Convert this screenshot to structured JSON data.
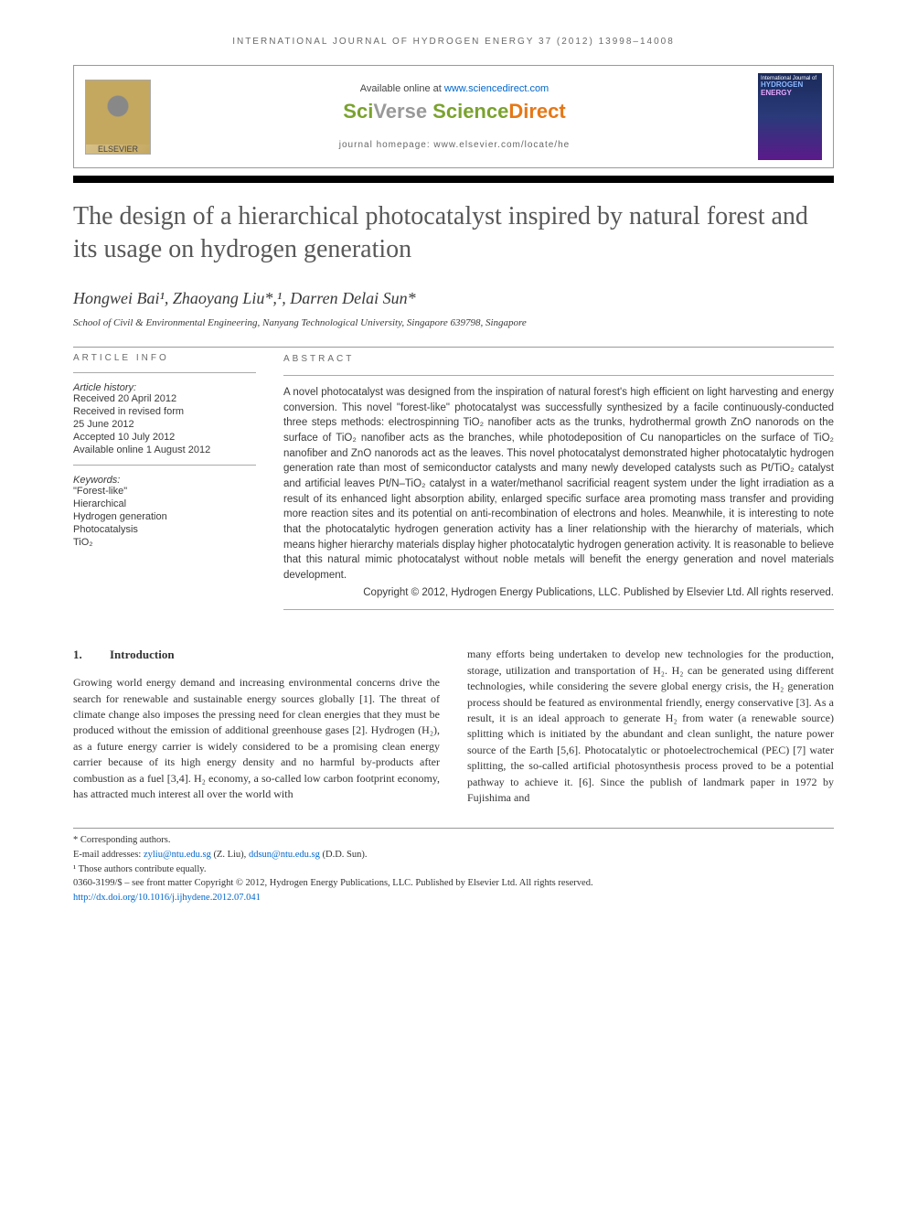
{
  "running_head": "INTERNATIONAL JOURNAL OF HYDROGEN ENERGY 37 (2012) 13998–14008",
  "banner": {
    "elsevier_label": "ELSEVIER",
    "available_text": "Available online at ",
    "available_url": "www.sciencedirect.com",
    "sciverse_sci": "Sci",
    "sciverse_verse": "Verse ",
    "sciverse_science": "Science",
    "sciverse_direct": "Direct",
    "homepage_label": "journal homepage: www.elsevier.com/locate/he",
    "cover_top": "International Journal of",
    "cover_hydrogen": "HYDROGEN",
    "cover_energy": "ENERGY"
  },
  "title": "The design of a hierarchical photocatalyst inspired by natural forest and its usage on hydrogen generation",
  "authors": "Hongwei Bai¹, Zhaoyang Liu*,¹, Darren Delai Sun*",
  "affiliation": "School of Civil & Environmental Engineering, Nanyang Technological University, Singapore 639798, Singapore",
  "info": {
    "heading": "ARTICLE INFO",
    "history_label": "Article history:",
    "history": [
      "Received 20 April 2012",
      "Received in revised form",
      "25 June 2012",
      "Accepted 10 July 2012",
      "Available online 1 August 2012"
    ],
    "keywords_label": "Keywords:",
    "keywords": [
      "\"Forest-like\"",
      "Hierarchical",
      "Hydrogen generation",
      "Photocatalysis",
      "TiO₂"
    ]
  },
  "abstract": {
    "heading": "ABSTRACT",
    "text": "A novel photocatalyst was designed from the inspiration of natural forest's high efficient on light harvesting and energy conversion. This novel \"forest-like\" photocatalyst was successfully synthesized by a facile continuously-conducted three steps methods: electrospinning TiO₂ nanofiber acts as the trunks, hydrothermal growth ZnO nanorods on the surface of TiO₂ nanofiber acts as the branches, while photodeposition of Cu nanoparticles on the surface of TiO₂ nanofiber and ZnO nanorods act as the leaves. This novel photocatalyst demonstrated higher photocatalytic hydrogen generation rate than most of semiconductor catalysts and many newly developed catalysts such as Pt/TiO₂ catalyst and artificial leaves Pt/N–TiO₂ catalyst in a water/methanol sacrificial reagent system under the light irradiation as a result of its enhanced light absorption ability, enlarged specific surface area promoting mass transfer and providing more reaction sites and its potential on anti-recombination of electrons and holes. Meanwhile, it is interesting to note that the photocatalytic hydrogen generation activity has a liner relationship with the hierarchy of materials, which means higher hierarchy materials display higher photocatalytic hydrogen generation activity. It is reasonable to believe that this natural mimic photocatalyst without noble metals will benefit the energy generation and novel materials development.",
    "copyright": "Copyright © 2012, Hydrogen Energy Publications, LLC. Published by Elsevier Ltd. All rights reserved."
  },
  "section1": {
    "num": "1.",
    "title": "Introduction"
  },
  "body": {
    "col1": "Growing world energy demand and increasing environmental concerns drive the search for renewable and sustainable energy sources globally [1]. The threat of climate change also imposes the pressing need for clean energies that they must be produced without the emission of additional greenhouse gases [2]. Hydrogen (H₂), as a future energy carrier is widely considered to be a promising clean energy carrier because of its high energy density and no harmful by-products after combustion as a fuel [3,4]. H₂ economy, a so-called low carbon footprint economy, has attracted much interest all over the world with",
    "col2": "many efforts being undertaken to develop new technologies for the production, storage, utilization and transportation of H₂. H₂ can be generated using different technologies, while considering the severe global energy crisis, the H₂ generation process should be featured as environmental friendly, energy conservative [3]. As a result, it is an ideal approach to generate H₂ from water (a renewable source) splitting which is initiated by the abundant and clean sunlight, the nature power source of the Earth [5,6]. Photocatalytic or photoelectrochemical (PEC) [7] water splitting, the so-called artificial photosynthesis process proved to be a potential pathway to achieve it. [6]. Since the publish of landmark paper in 1972 by Fujishima and"
  },
  "footnotes": {
    "corresponding": "* Corresponding authors.",
    "email_label": "E-mail addresses: ",
    "email1": "zyliu@ntu.edu.sg",
    "email1_person": " (Z. Liu), ",
    "email2": "ddsun@ntu.edu.sg",
    "email2_person": " (D.D. Sun).",
    "equal": "¹ Those authors contribute equally.",
    "issn": "0360-3199/$ – see front matter Copyright © 2012, Hydrogen Energy Publications, LLC. Published by Elsevier Ltd. All rights reserved.",
    "doi": "http://dx.doi.org/10.1016/j.ijhydene.2012.07.041"
  },
  "colors": {
    "link": "#0066cc",
    "title_gray": "#585858",
    "elsevier_orange": "#e67817",
    "sciverse_green": "#7aa22e"
  }
}
